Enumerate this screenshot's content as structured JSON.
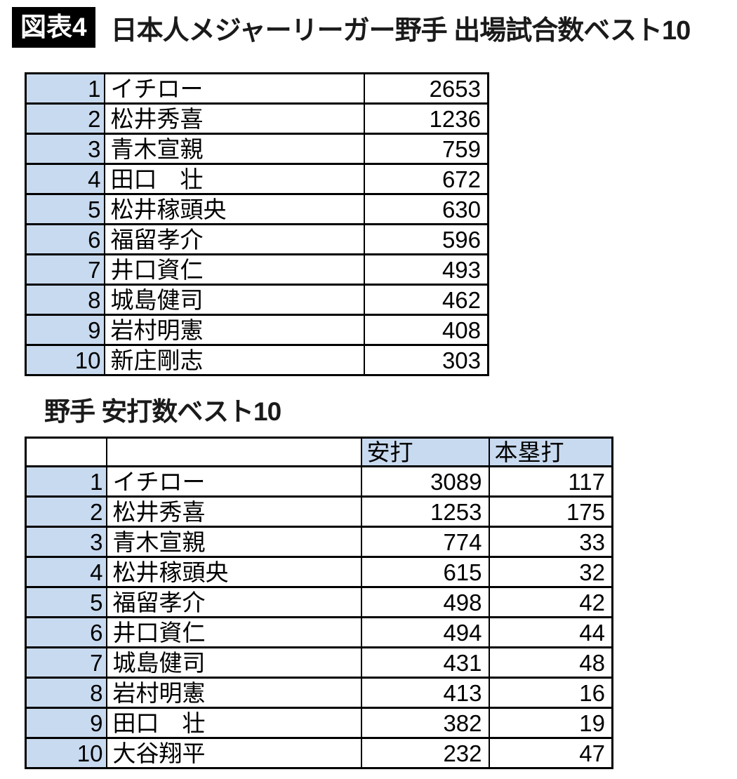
{
  "figure": {
    "badge": "図表4",
    "title": "日本人メジャーリーガー野手 出場試合数ベスト10",
    "section2_title": "野手 安打数ベスト10"
  },
  "colors": {
    "accent_blue": "#c8daef",
    "border": "#000000",
    "badge_bg": "#000000",
    "badge_text": "#ffffff"
  },
  "table1": {
    "rows": [
      {
        "rank": "1",
        "name": "イチロー",
        "games": "2653"
      },
      {
        "rank": "2",
        "name": "松井秀喜",
        "games": "1236"
      },
      {
        "rank": "3",
        "name": "青木宣親",
        "games": "759"
      },
      {
        "rank": "4",
        "name": "田口　壮",
        "games": "672"
      },
      {
        "rank": "5",
        "name": "松井稼頭央",
        "games": "630"
      },
      {
        "rank": "6",
        "name": "福留孝介",
        "games": "596"
      },
      {
        "rank": "7",
        "name": "井口資仁",
        "games": "493"
      },
      {
        "rank": "8",
        "name": "城島健司",
        "games": "462"
      },
      {
        "rank": "9",
        "name": "岩村明憲",
        "games": "408"
      },
      {
        "rank": "10",
        "name": "新庄剛志",
        "games": "303"
      }
    ]
  },
  "table2": {
    "headers": {
      "rank": "",
      "name": "",
      "hits": "安打",
      "homeruns": "本塁打"
    },
    "rows": [
      {
        "rank": "1",
        "name": "イチロー",
        "hits": "3089",
        "hr": "117"
      },
      {
        "rank": "2",
        "name": "松井秀喜",
        "hits": "1253",
        "hr": "175"
      },
      {
        "rank": "3",
        "name": "青木宣親",
        "hits": "774",
        "hr": "33"
      },
      {
        "rank": "4",
        "name": "松井稼頭央",
        "hits": "615",
        "hr": "32"
      },
      {
        "rank": "5",
        "name": "福留孝介",
        "hits": "498",
        "hr": "42"
      },
      {
        "rank": "6",
        "name": "井口資仁",
        "hits": "494",
        "hr": "44"
      },
      {
        "rank": "7",
        "name": "城島健司",
        "hits": "431",
        "hr": "48"
      },
      {
        "rank": "8",
        "name": "岩村明憲",
        "hits": "413",
        "hr": "16"
      },
      {
        "rank": "9",
        "name": "田口　壮",
        "hits": "382",
        "hr": "19"
      },
      {
        "rank": "10",
        "name": "大谷翔平",
        "hits": "232",
        "hr": "47"
      }
    ]
  },
  "chart_data": [
    {
      "type": "table",
      "title": "日本人メジャーリーガー野手 出場試合数ベスト10",
      "columns": [
        "",
        "",
        ""
      ],
      "rows": [
        [
          1,
          "イチロー",
          2653
        ],
        [
          2,
          "松井秀喜",
          1236
        ],
        [
          3,
          "青木宣親",
          759
        ],
        [
          4,
          "田口　壮",
          672
        ],
        [
          5,
          "松井稼頭央",
          630
        ],
        [
          6,
          "福留孝介",
          596
        ],
        [
          7,
          "井口資仁",
          493
        ],
        [
          8,
          "城島健司",
          462
        ],
        [
          9,
          "岩村明憲",
          408
        ],
        [
          10,
          "新庄剛志",
          303
        ]
      ]
    },
    {
      "type": "table",
      "title": "野手 安打数ベスト10",
      "columns": [
        "",
        "",
        "安打",
        "本塁打"
      ],
      "rows": [
        [
          1,
          "イチロー",
          3089,
          117
        ],
        [
          2,
          "松井秀喜",
          1253,
          175
        ],
        [
          3,
          "青木宣親",
          774,
          33
        ],
        [
          4,
          "松井稼頭央",
          615,
          32
        ],
        [
          5,
          "福留孝介",
          498,
          42
        ],
        [
          6,
          "井口資仁",
          494,
          44
        ],
        [
          7,
          "城島健司",
          431,
          48
        ],
        [
          8,
          "岩村明憲",
          413,
          16
        ],
        [
          9,
          "田口　壮",
          382,
          19
        ],
        [
          10,
          "大谷翔平",
          232,
          47
        ]
      ]
    }
  ]
}
